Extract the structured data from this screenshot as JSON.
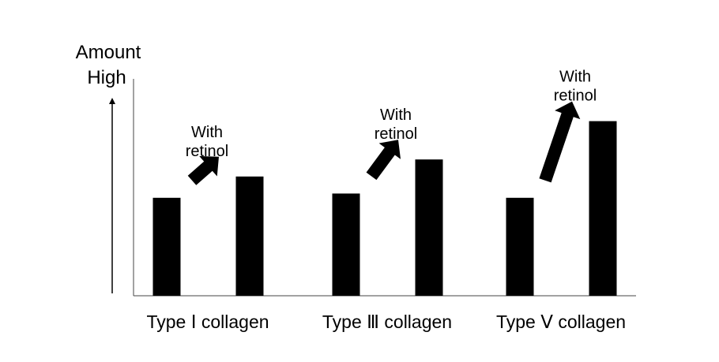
{
  "chart_data": {
    "type": "bar",
    "y_axis_title": "Amount",
    "y_axis_top_label": "High",
    "categories": [
      "Type Ⅰ collagen",
      "Type Ⅲ collagen",
      "Type Ⅴ collagen"
    ],
    "series": [
      {
        "values": [
          0.46,
          0.48,
          0.46
        ]
      },
      {
        "name": "With retinol",
        "values": [
          0.56,
          0.64,
          0.82
        ]
      }
    ],
    "annotations": [
      "With",
      "retinol"
    ],
    "ylim": [
      0,
      1
    ],
    "grid": false,
    "bar_color": "#000000"
  }
}
